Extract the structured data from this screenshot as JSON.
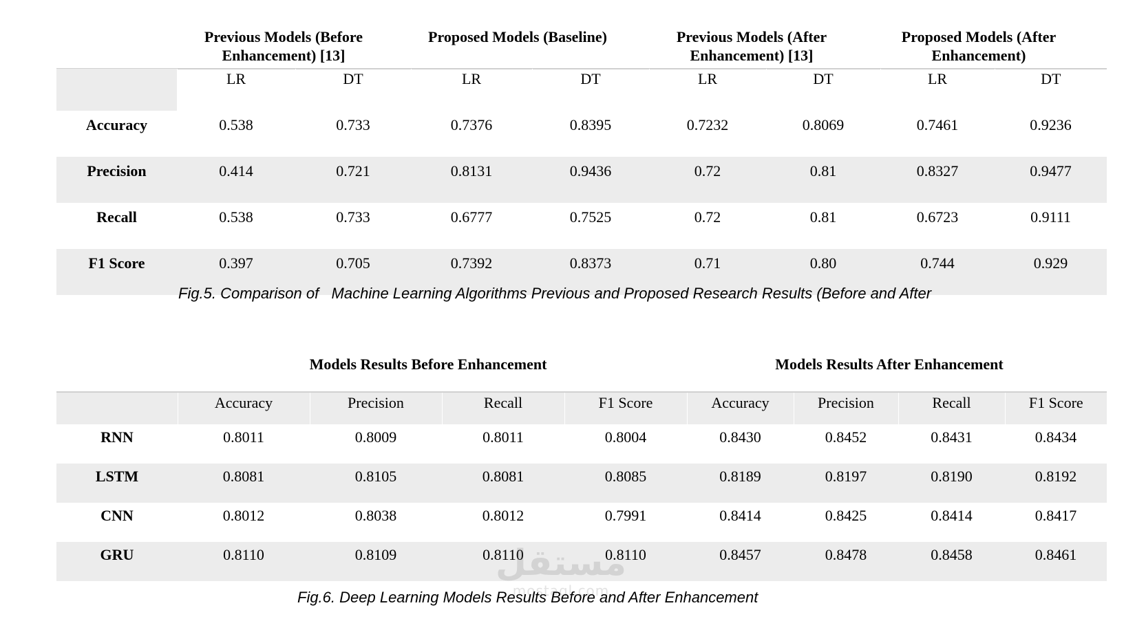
{
  "table1": {
    "group_headers": [
      "Previous Models (Before Enhancement) [13]",
      "Proposed Models (Baseline)",
      "Previous Models (After Enhancement) [13]",
      "Proposed Models (After Enhancement)"
    ],
    "sub_headers": [
      "LR",
      "DT",
      "LR",
      "DT",
      "LR",
      "DT",
      "LR",
      "DT"
    ],
    "rows": [
      {
        "label": "Accuracy",
        "values": [
          "0.538",
          "0.733",
          "0.7376",
          "0.8395",
          "0.7232",
          "0.8069",
          "0.7461",
          "0.9236"
        ]
      },
      {
        "label": "Precision",
        "values": [
          "0.414",
          "0.721",
          "0.8131",
          "0.9436",
          "0.72",
          "0.81",
          "0.8327",
          "0.9477"
        ]
      },
      {
        "label": "Recall",
        "values": [
          "0.538",
          "0.733",
          "0.6777",
          "0.7525",
          "0.72",
          "0.81",
          "0.6723",
          "0.9111"
        ]
      },
      {
        "label": "F1 Score",
        "values": [
          "0.397",
          "0.705",
          "0.7392",
          "0.8373",
          "0.71",
          "0.80",
          "0.744",
          "0.929"
        ]
      }
    ],
    "caption": "Fig.5. Comparison of   Machine Learning Algorithms Previous and Proposed Research Results (Before and After"
  },
  "table2": {
    "group_headers": [
      "Models Results Before Enhancement",
      "Models Results After Enhancement"
    ],
    "sub_headers": [
      "Accuracy",
      "Precision",
      "Recall",
      "F1 Score",
      "Accuracy",
      "Precision",
      "Recall",
      "F1 Score"
    ],
    "rows": [
      {
        "label": "RNN",
        "values": [
          "0.8011",
          "0.8009",
          "0.8011",
          "0.8004",
          "0.8430",
          "0.8452",
          "0.8431",
          "0.8434"
        ]
      },
      {
        "label": "LSTM",
        "values": [
          "0.8081",
          "0.8105",
          "0.8081",
          "0.8085",
          "0.8189",
          "0.8197",
          "0.8190",
          "0.8192"
        ]
      },
      {
        "label": "CNN",
        "values": [
          "0.8012",
          "0.8038",
          "0.8012",
          "0.7991",
          "0.8414",
          "0.8425",
          "0.8414",
          "0.8417"
        ]
      },
      {
        "label": "GRU",
        "values": [
          "0.8110",
          "0.8109",
          "0.8110",
          "0.8110",
          "0.8457",
          "0.8478",
          "0.8458",
          "0.8461"
        ]
      }
    ],
    "caption": "Fig.6. Deep Learning Models Results Before and After Enhancement"
  },
  "watermark": {
    "arabic": "مستقل",
    "latin": "mostaql.com"
  }
}
